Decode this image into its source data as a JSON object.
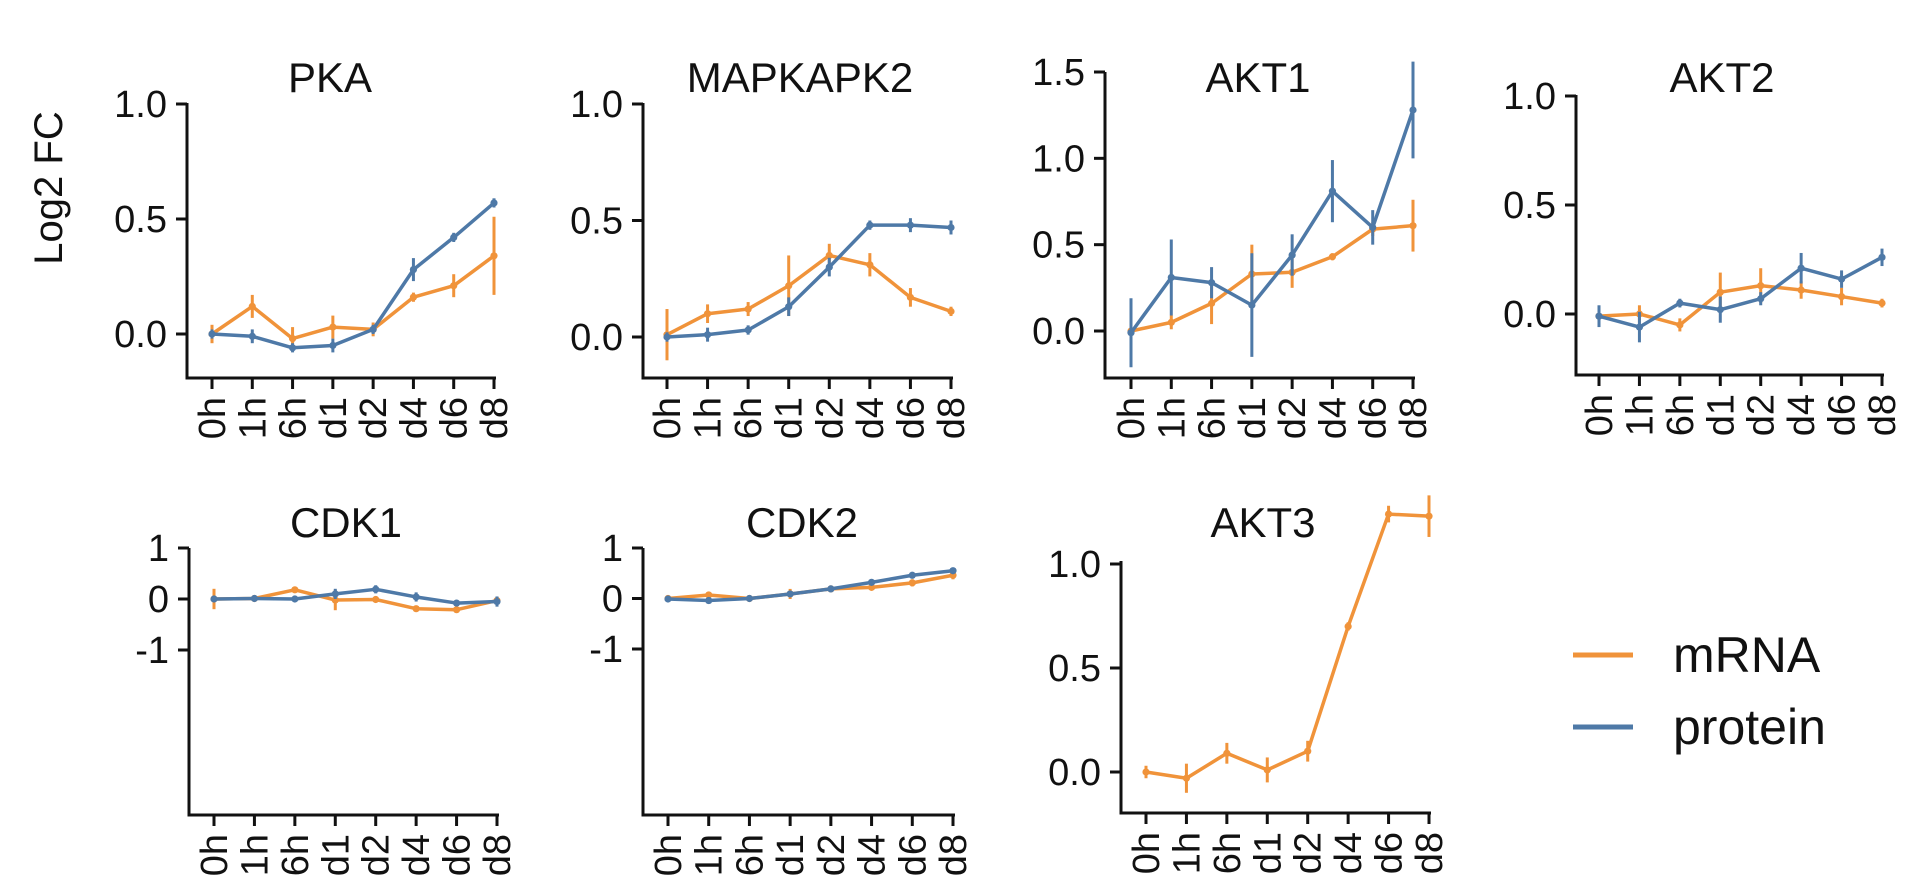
{
  "figure": {
    "ylabel": "Log2 FC",
    "colors": {
      "mRNA": "#F0933A",
      "protein": "#4E79A7"
    }
  },
  "legend": {
    "items": [
      {
        "label": "mRNA",
        "color": "#F0933A"
      },
      {
        "label": "protein",
        "color": "#4E79A7"
      }
    ]
  },
  "chart_data": [
    {
      "type": "line",
      "title": "PKA",
      "categories": [
        "0h",
        "1h",
        "6h",
        "d1",
        "d2",
        "d4",
        "d6",
        "d8"
      ],
      "ylim": [
        -0.2,
        1.0
      ],
      "yticks": [
        0.0,
        0.5,
        1.0
      ],
      "ytick_labels": [
        "0.0",
        "0.5",
        "1.0"
      ],
      "ylabel": "Log2 FC",
      "series": [
        {
          "name": "mRNA",
          "values": [
            0.0,
            0.12,
            -0.02,
            0.03,
            0.02,
            0.16,
            0.21,
            0.34
          ],
          "errors": [
            0.04,
            0.05,
            0.05,
            0.05,
            0.03,
            0.02,
            0.05,
            0.17
          ]
        },
        {
          "name": "protein",
          "values": [
            0.0,
            -0.01,
            -0.06,
            -0.05,
            0.02,
            0.28,
            0.42,
            0.57
          ],
          "errors": [
            0.02,
            0.03,
            0.02,
            0.03,
            0.02,
            0.05,
            0.02,
            0.02
          ]
        }
      ]
    },
    {
      "type": "line",
      "title": "MAPKAPK2",
      "categories": [
        "0h",
        "1h",
        "6h",
        "d1",
        "d2",
        "d4",
        "d6",
        "d8"
      ],
      "ylim": [
        -0.18,
        1.0
      ],
      "yticks": [
        0.0,
        0.5,
        1.0
      ],
      "ytick_labels": [
        "0.0",
        "0.5",
        "1.0"
      ],
      "series": [
        {
          "name": "mRNA",
          "values": [
            0.01,
            0.1,
            0.12,
            0.22,
            0.35,
            0.31,
            0.17,
            0.11
          ],
          "errors": [
            0.11,
            0.04,
            0.03,
            0.13,
            0.05,
            0.05,
            0.04,
            0.02
          ]
        },
        {
          "name": "protein",
          "values": [
            0.0,
            0.01,
            0.03,
            0.13,
            0.3,
            0.48,
            0.48,
            0.47
          ],
          "errors": [
            0.02,
            0.03,
            0.02,
            0.04,
            0.04,
            0.02,
            0.03,
            0.03
          ]
        }
      ]
    },
    {
      "type": "line",
      "title": "AKT1",
      "categories": [
        "0h",
        "1h",
        "6h",
        "d1",
        "d2",
        "d4",
        "d6",
        "d8"
      ],
      "ylim": [
        -0.15,
        1.5
      ],
      "yticks": [
        0.0,
        0.5,
        1.0,
        1.5
      ],
      "ytick_labels": [
        "0.0",
        "0.5",
        "1.0",
        "1.5"
      ],
      "series": [
        {
          "name": "mRNA",
          "values": [
            0.0,
            0.05,
            0.16,
            0.33,
            0.34,
            0.43,
            0.59,
            0.61
          ],
          "errors": [
            0.02,
            0.04,
            0.12,
            0.17,
            0.09,
            0.02,
            0.04,
            0.15
          ]
        },
        {
          "name": "protein",
          "values": [
            -0.01,
            0.31,
            0.28,
            0.15,
            0.44,
            0.81,
            0.6,
            1.28
          ],
          "errors": [
            0.2,
            0.22,
            0.09,
            0.3,
            0.12,
            0.18,
            0.1,
            0.28
          ]
        }
      ]
    },
    {
      "type": "line",
      "title": "AKT2",
      "categories": [
        "0h",
        "1h",
        "6h",
        "d1",
        "d2",
        "d4",
        "d6",
        "d8"
      ],
      "ylim": [
        -0.3,
        1.0
      ],
      "yticks": [
        0.0,
        0.5,
        1.0
      ],
      "ytick_labels": [
        "0.0",
        "0.5",
        "1.0"
      ],
      "series": [
        {
          "name": "mRNA",
          "values": [
            -0.01,
            0.0,
            -0.05,
            0.1,
            0.13,
            0.11,
            0.08,
            0.05
          ],
          "errors": [
            0.03,
            0.04,
            0.03,
            0.09,
            0.08,
            0.04,
            0.04,
            0.02
          ]
        },
        {
          "name": "protein",
          "values": [
            -0.01,
            -0.06,
            0.05,
            0.02,
            0.07,
            0.21,
            0.16,
            0.26
          ],
          "errors": [
            0.05,
            0.07,
            0.02,
            0.06,
            0.03,
            0.07,
            0.04,
            0.04
          ]
        }
      ]
    },
    {
      "type": "line",
      "title": "CDK1",
      "categories": [
        "0h",
        "1h",
        "6h",
        "d1",
        "d2",
        "d4",
        "d6",
        "d8"
      ],
      "ylim": [
        -1.65,
        1.0
      ],
      "yticks": [
        -1,
        0,
        1
      ],
      "ytick_labels": [
        "-1",
        "0",
        "1"
      ],
      "series": [
        {
          "name": "mRNA",
          "values": [
            0.0,
            0.01,
            0.18,
            -0.02,
            -0.01,
            -0.19,
            -0.21,
            -0.03
          ],
          "errors": [
            0.2,
            0.04,
            0.03,
            0.2,
            0.03,
            0.04,
            0.04,
            0.05
          ]
        },
        {
          "name": "protein",
          "values": [
            0.0,
            0.01,
            0.0,
            0.1,
            0.19,
            0.04,
            -0.08,
            -0.05
          ],
          "errors": [
            0.03,
            0.03,
            0.04,
            0.1,
            0.08,
            0.09,
            0.06,
            0.1
          ]
        }
      ]
    },
    {
      "type": "line",
      "title": "CDK2",
      "categories": [
        "0h",
        "1h",
        "6h",
        "d1",
        "d2",
        "d4",
        "d6",
        "d8"
      ],
      "ylim": [
        -1.65,
        1.0
      ],
      "yticks": [
        -1,
        0,
        1
      ],
      "ytick_labels": [
        "-1",
        "0",
        "1"
      ],
      "series": [
        {
          "name": "mRNA",
          "values": [
            0.0,
            0.07,
            0.0,
            0.09,
            0.19,
            0.22,
            0.31,
            0.46
          ],
          "errors": [
            0.04,
            0.03,
            0.02,
            0.1,
            0.02,
            0.05,
            0.07,
            0.08
          ]
        },
        {
          "name": "protein",
          "values": [
            -0.01,
            -0.04,
            0.0,
            0.09,
            0.19,
            0.32,
            0.46,
            0.55
          ],
          "errors": [
            0.03,
            0.03,
            0.02,
            0.03,
            0.02,
            0.02,
            0.03,
            0.04
          ]
        }
      ]
    },
    {
      "type": "line",
      "title": "AKT3",
      "categories": [
        "0h",
        "1h",
        "6h",
        "d1",
        "d2",
        "d4",
        "d6",
        "d8"
      ],
      "ylim": [
        -0.2,
        1.0
      ],
      "yticks": [
        0.0,
        0.5,
        1.0
      ],
      "ytick_labels": [
        "0.0",
        "0.5",
        "1.0"
      ],
      "series": [
        {
          "name": "mRNA",
          "values": [
            0.0,
            -0.03,
            0.09,
            0.01,
            0.1,
            0.7,
            1.24,
            1.23
          ],
          "errors": [
            0.03,
            0.07,
            0.05,
            0.06,
            0.05,
            0.02,
            0.04,
            0.1
          ]
        }
      ]
    }
  ]
}
